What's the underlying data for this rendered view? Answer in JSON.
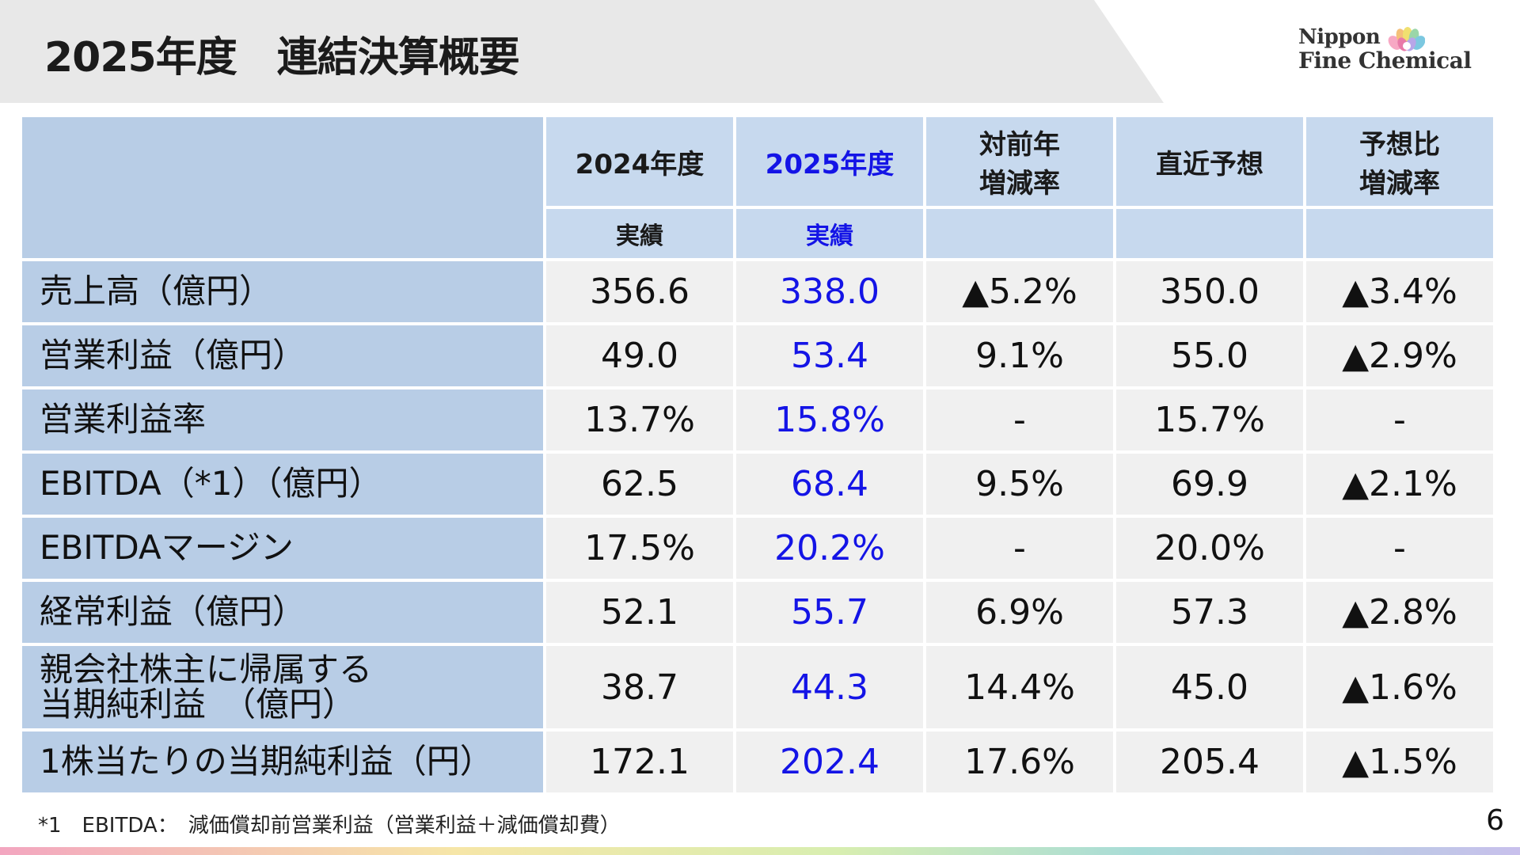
{
  "header": {
    "title": "2025年度　連結決算概要",
    "logo": {
      "line1": "Nippon",
      "line2": "Fine Chemical"
    }
  },
  "table": {
    "columns": [
      {
        "title": "2024年度",
        "sub": "実績"
      },
      {
        "title": "2025年度",
        "sub": "実績"
      },
      {
        "title_lines": [
          "対前年",
          "増減率"
        ],
        "sub": ""
      },
      {
        "title": "直近予想",
        "sub": ""
      },
      {
        "title_lines": [
          "予想比",
          "増減率"
        ],
        "sub": ""
      }
    ],
    "rows": [
      {
        "label": [
          "売上高（億円）"
        ],
        "values": [
          "356.6",
          "338.0",
          "▲5.2%",
          "350.0",
          "▲3.4%"
        ]
      },
      {
        "label": [
          "営業利益（億円）"
        ],
        "values": [
          "49.0",
          "53.4",
          "9.1%",
          "55.0",
          "▲2.9%"
        ]
      },
      {
        "label": [
          "営業利益率"
        ],
        "values": [
          "13.7%",
          "15.8%",
          "-",
          "15.7%",
          "-"
        ]
      },
      {
        "label": [
          "EBITDA（*1）（億円）"
        ],
        "values": [
          "62.5",
          "68.4",
          "9.5%",
          "69.9",
          "▲2.1%"
        ]
      },
      {
        "label": [
          "EBITDAマージン"
        ],
        "values": [
          "17.5%",
          "20.2%",
          "-",
          "20.0%",
          "-"
        ]
      },
      {
        "label": [
          "経常利益（億円）"
        ],
        "values": [
          "52.1",
          "55.7",
          "6.9%",
          "57.3",
          "▲2.8%"
        ]
      },
      {
        "label": [
          "親会社株主に帰属する",
          "当期純利益　（億円）"
        ],
        "values": [
          "38.7",
          "44.3",
          "14.4%",
          "45.0",
          "▲1.6%"
        ]
      },
      {
        "label": [
          "1株当たりの当期純利益（円）"
        ],
        "values": [
          "172.1",
          "202.4",
          "17.6%",
          "205.4",
          "▲1.5%"
        ]
      }
    ]
  },
  "footnote": "*1　EBITDA：　減価償却前営業利益（営業利益＋減価償却費）",
  "page_number": "6",
  "colors": {
    "header_cell": "#c7d9ee",
    "label_cell": "#b8cde6",
    "value_cell": "#f0f0f0",
    "highlight_text": "#1414e6"
  }
}
